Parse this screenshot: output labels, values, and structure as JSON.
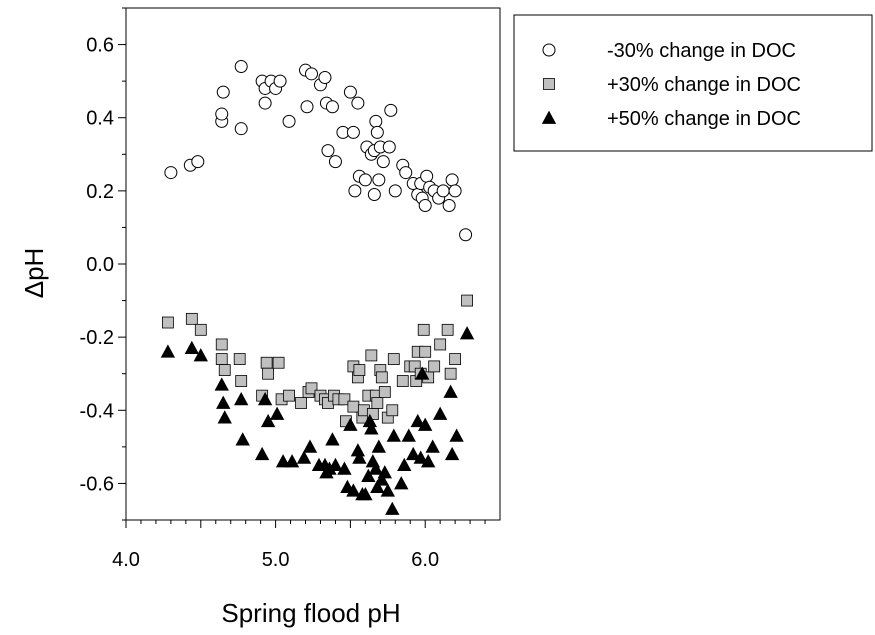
{
  "chart_data": {
    "type": "scatter",
    "title": "",
    "xlabel": "Spring flood pH",
    "ylabel": "ΔpH",
    "xlim": [
      4.0,
      6.5
    ],
    "ylim": [
      -0.7,
      0.7
    ],
    "xticks": [
      4.0,
      4.5,
      5.0,
      5.5,
      6.0
    ],
    "xtick_labels": [
      "4.0",
      "",
      "5.0",
      "",
      "6.0"
    ],
    "yticks": [
      -0.6,
      -0.4,
      -0.2,
      0.0,
      0.2,
      0.4,
      0.6
    ],
    "ytick_labels": [
      "-0.6",
      "-0.4",
      "-0.2",
      "0.0",
      "0.2",
      "0.4",
      "0.6"
    ],
    "grid": false,
    "legend_position": "top-right, outside plot",
    "series": [
      {
        "name": "-30% change in DOC",
        "marker": "circle",
        "fill": "#ffffff",
        "stroke": "#000000",
        "points": [
          [
            4.3,
            0.25
          ],
          [
            4.43,
            0.27
          ],
          [
            4.48,
            0.28
          ],
          [
            4.64,
            0.39
          ],
          [
            4.64,
            0.41
          ],
          [
            4.65,
            0.47
          ],
          [
            4.77,
            0.37
          ],
          [
            4.77,
            0.54
          ],
          [
            4.91,
            0.5
          ],
          [
            4.93,
            0.44
          ],
          [
            4.93,
            0.48
          ],
          [
            4.97,
            0.5
          ],
          [
            5.0,
            0.48
          ],
          [
            5.03,
            0.5
          ],
          [
            5.09,
            0.39
          ],
          [
            5.2,
            0.53
          ],
          [
            5.21,
            0.43
          ],
          [
            5.24,
            0.52
          ],
          [
            5.3,
            0.49
          ],
          [
            5.33,
            0.51
          ],
          [
            5.34,
            0.44
          ],
          [
            5.35,
            0.31
          ],
          [
            5.38,
            0.43
          ],
          [
            5.4,
            0.28
          ],
          [
            5.45,
            0.36
          ],
          [
            5.5,
            0.47
          ],
          [
            5.52,
            0.36
          ],
          [
            5.53,
            0.2
          ],
          [
            5.55,
            0.44
          ],
          [
            5.56,
            0.24
          ],
          [
            5.6,
            0.23
          ],
          [
            5.61,
            0.32
          ],
          [
            5.64,
            0.3
          ],
          [
            5.66,
            0.19
          ],
          [
            5.66,
            0.31
          ],
          [
            5.67,
            0.39
          ],
          [
            5.68,
            0.36
          ],
          [
            5.69,
            0.23
          ],
          [
            5.7,
            0.32
          ],
          [
            5.72,
            0.28
          ],
          [
            5.76,
            0.32
          ],
          [
            5.77,
            0.42
          ],
          [
            5.8,
            0.2
          ],
          [
            5.85,
            0.27
          ],
          [
            5.87,
            0.25
          ],
          [
            5.92,
            0.22
          ],
          [
            5.95,
            0.19
          ],
          [
            5.97,
            0.22
          ],
          [
            5.98,
            0.18
          ],
          [
            6.0,
            0.16
          ],
          [
            6.01,
            0.24
          ],
          [
            6.03,
            0.21
          ],
          [
            6.06,
            0.2
          ],
          [
            6.09,
            0.18
          ],
          [
            6.12,
            0.2
          ],
          [
            6.16,
            0.16
          ],
          [
            6.18,
            0.23
          ],
          [
            6.2,
            0.2
          ],
          [
            6.27,
            0.08
          ]
        ]
      },
      {
        "name": "+30% change in DOC",
        "marker": "square",
        "fill": "#c0c0c0",
        "stroke": "#000000",
        "points": [
          [
            4.28,
            -0.16
          ],
          [
            4.44,
            -0.15
          ],
          [
            4.5,
            -0.18
          ],
          [
            4.64,
            -0.22
          ],
          [
            4.64,
            -0.26
          ],
          [
            4.66,
            -0.29
          ],
          [
            4.76,
            -0.26
          ],
          [
            4.77,
            -0.32
          ],
          [
            4.91,
            -0.36
          ],
          [
            4.94,
            -0.27
          ],
          [
            4.95,
            -0.3
          ],
          [
            5.02,
            -0.27
          ],
          [
            5.04,
            -0.37
          ],
          [
            5.09,
            -0.36
          ],
          [
            5.17,
            -0.38
          ],
          [
            5.22,
            -0.35
          ],
          [
            5.24,
            -0.34
          ],
          [
            5.3,
            -0.36
          ],
          [
            5.33,
            -0.37
          ],
          [
            5.35,
            -0.38
          ],
          [
            5.39,
            -0.36
          ],
          [
            5.42,
            -0.37
          ],
          [
            5.46,
            -0.37
          ],
          [
            5.47,
            -0.43
          ],
          [
            5.52,
            -0.28
          ],
          [
            5.52,
            -0.39
          ],
          [
            5.55,
            -0.31
          ],
          [
            5.56,
            -0.29
          ],
          [
            5.58,
            -0.42
          ],
          [
            5.59,
            -0.4
          ],
          [
            5.62,
            -0.36
          ],
          [
            5.64,
            -0.25
          ],
          [
            5.65,
            -0.41
          ],
          [
            5.67,
            -0.36
          ],
          [
            5.68,
            -0.38
          ],
          [
            5.7,
            -0.29
          ],
          [
            5.71,
            -0.31
          ],
          [
            5.73,
            -0.35
          ],
          [
            5.75,
            -0.42
          ],
          [
            5.78,
            -0.4
          ],
          [
            5.79,
            -0.26
          ],
          [
            5.85,
            -0.32
          ],
          [
            5.9,
            -0.28
          ],
          [
            5.93,
            -0.28
          ],
          [
            5.94,
            -0.32
          ],
          [
            5.95,
            -0.24
          ],
          [
            5.97,
            -0.3
          ],
          [
            5.99,
            -0.18
          ],
          [
            6.0,
            -0.24
          ],
          [
            6.02,
            -0.31
          ],
          [
            6.06,
            -0.28
          ],
          [
            6.1,
            -0.22
          ],
          [
            6.15,
            -0.18
          ],
          [
            6.17,
            -0.3
          ],
          [
            6.2,
            -0.26
          ],
          [
            6.28,
            -0.1
          ]
        ]
      },
      {
        "name": "+50% change in DOC",
        "marker": "triangle",
        "fill": "#000000",
        "stroke": "#000000",
        "points": [
          [
            4.28,
            -0.24
          ],
          [
            4.44,
            -0.23
          ],
          [
            4.5,
            -0.25
          ],
          [
            4.64,
            -0.33
          ],
          [
            4.65,
            -0.38
          ],
          [
            4.66,
            -0.42
          ],
          [
            4.77,
            -0.37
          ],
          [
            4.78,
            -0.48
          ],
          [
            4.91,
            -0.52
          ],
          [
            4.93,
            -0.37
          ],
          [
            4.95,
            -0.43
          ],
          [
            5.01,
            -0.41
          ],
          [
            5.05,
            -0.54
          ],
          [
            5.11,
            -0.54
          ],
          [
            5.19,
            -0.53
          ],
          [
            5.23,
            -0.5
          ],
          [
            5.29,
            -0.55
          ],
          [
            5.33,
            -0.55
          ],
          [
            5.34,
            -0.57
          ],
          [
            5.36,
            -0.56
          ],
          [
            5.38,
            -0.48
          ],
          [
            5.4,
            -0.55
          ],
          [
            5.46,
            -0.56
          ],
          [
            5.48,
            -0.61
          ],
          [
            5.5,
            -0.44
          ],
          [
            5.52,
            -0.62
          ],
          [
            5.55,
            -0.51
          ],
          [
            5.56,
            -0.53
          ],
          [
            5.58,
            -0.63
          ],
          [
            5.6,
            -0.63
          ],
          [
            5.62,
            -0.58
          ],
          [
            5.63,
            -0.43
          ],
          [
            5.64,
            -0.45
          ],
          [
            5.65,
            -0.54
          ],
          [
            5.67,
            -0.56
          ],
          [
            5.68,
            -0.61
          ],
          [
            5.69,
            -0.5
          ],
          [
            5.71,
            -0.59
          ],
          [
            5.73,
            -0.57
          ],
          [
            5.75,
            -0.62
          ],
          [
            5.78,
            -0.67
          ],
          [
            5.79,
            -0.47
          ],
          [
            5.84,
            -0.6
          ],
          [
            5.86,
            -0.55
          ],
          [
            5.89,
            -0.47
          ],
          [
            5.92,
            -0.52
          ],
          [
            5.95,
            -0.43
          ],
          [
            5.97,
            -0.53
          ],
          [
            5.98,
            -0.3
          ],
          [
            6.0,
            -0.44
          ],
          [
            6.02,
            -0.54
          ],
          [
            6.05,
            -0.5
          ],
          [
            6.1,
            -0.41
          ],
          [
            6.17,
            -0.35
          ],
          [
            6.18,
            -0.52
          ],
          [
            6.21,
            -0.47
          ],
          [
            6.28,
            -0.19
          ]
        ]
      }
    ]
  }
}
